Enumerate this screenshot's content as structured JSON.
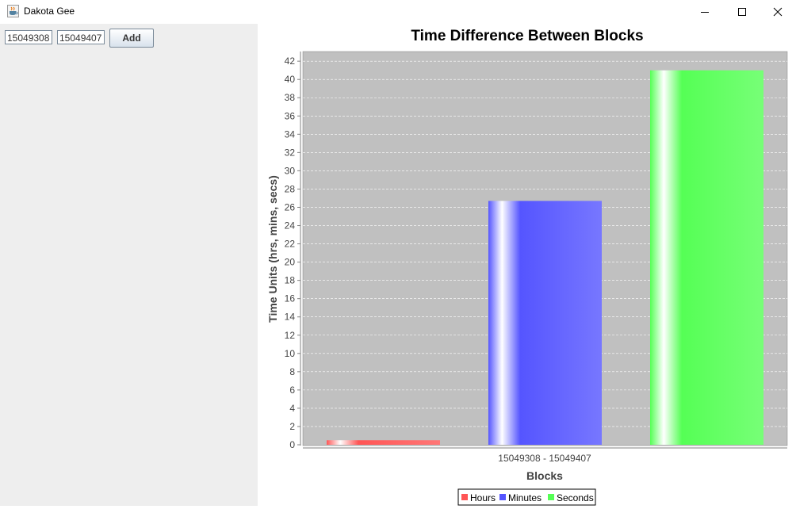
{
  "window": {
    "title": "Dakota Gee",
    "icon": "java-coffee-cup-icon"
  },
  "controls": {
    "start_block_value": "15049308",
    "end_block_value": "15049407",
    "add_label": "Add"
  },
  "colors": {
    "hours": "#ff5555",
    "minutes": "#5555ff",
    "seconds": "#55ff55",
    "plot_bg": "#c0c0c0"
  },
  "chart_data": {
    "type": "bar",
    "title": "Time Difference Between Blocks",
    "xlabel": "Blocks",
    "ylabel": "Time Units (hrs, mins, secs)",
    "categories": [
      "15049308 - 15049407"
    ],
    "series": [
      {
        "name": "Hours",
        "values": [
          0.5
        ]
      },
      {
        "name": "Minutes",
        "values": [
          26.7
        ]
      },
      {
        "name": "Seconds",
        "values": [
          41
        ]
      }
    ],
    "ylim": [
      0,
      43
    ],
    "yticks": [
      0,
      2,
      4,
      6,
      8,
      10,
      12,
      14,
      16,
      18,
      20,
      22,
      24,
      26,
      28,
      30,
      32,
      34,
      36,
      38,
      40,
      42
    ],
    "grid": true,
    "legend": "bottom-center"
  }
}
